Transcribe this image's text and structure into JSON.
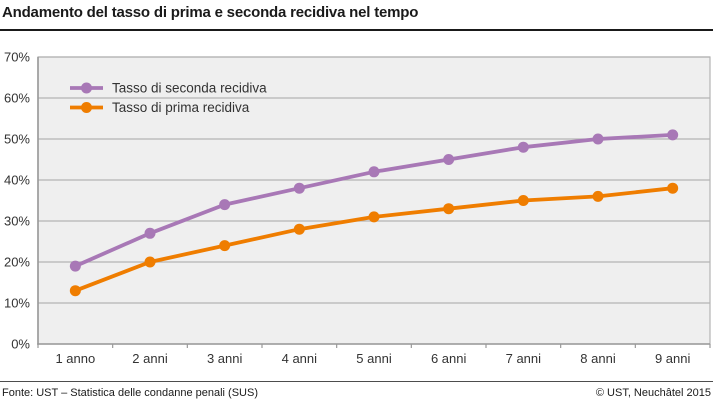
{
  "header": {
    "title": "Andamento del tasso di prima e seconda recidiva nel tempo"
  },
  "footer": {
    "source": "Fonte: UST – Statistica delle condanne penali (SUS)",
    "copyright": "© UST, Neuchâtel 2015"
  },
  "chart_data": {
    "type": "line",
    "title": "Andamento del tasso di prima e seconda recidiva nel tempo",
    "categories": [
      "1 anno",
      "2 anni",
      "3 anni",
      "4 anni",
      "5 anni",
      "6 anni",
      "7 anni",
      "8 anni",
      "9 anni"
    ],
    "series": [
      {
        "name": "Tasso di seconda recidiva",
        "color": "#a878b6",
        "values": [
          19,
          27,
          34,
          38,
          42,
          45,
          48,
          50,
          51
        ]
      },
      {
        "name": "Tasso di prima recidiva",
        "color": "#ef7d00",
        "values": [
          13,
          20,
          24,
          28,
          31,
          33,
          35,
          36,
          38
        ]
      }
    ],
    "xlabel": "",
    "ylabel": "",
    "ylim": [
      0,
      70
    ],
    "ytick_step": 10,
    "ytick_suffix": "%",
    "grid": true,
    "legend_position": "top-left",
    "plot_bg": "#efefef",
    "grid_color": "#b3b3b3",
    "axis_color": "#999999",
    "tick_color": "#999999",
    "text_color": "#333333"
  }
}
